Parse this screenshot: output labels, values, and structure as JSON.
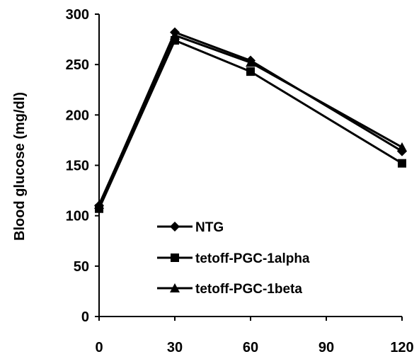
{
  "chart_data": {
    "type": "line",
    "title": "",
    "xlabel": "",
    "ylabel": "Blood glucose (mg/dl)",
    "x": [
      0,
      30,
      60,
      120
    ],
    "xticks": [
      0,
      30,
      60,
      90,
      120
    ],
    "yticks": [
      0,
      50,
      100,
      150,
      200,
      250,
      300
    ],
    "xlim": [
      0,
      120
    ],
    "ylim": [
      0,
      300
    ],
    "grid": false,
    "legend_position": "bottom-left",
    "line_color": "#000000",
    "series": [
      {
        "name": "NTG",
        "marker": "diamond",
        "values": [
          110,
          282,
          254,
          164
        ]
      },
      {
        "name": "tetoff-PGC-1alpha",
        "marker": "square",
        "values": [
          107,
          274,
          243,
          152
        ]
      },
      {
        "name": "tetoff-PGC-1beta",
        "marker": "triangle",
        "values": [
          111,
          279,
          252,
          168
        ]
      }
    ]
  }
}
